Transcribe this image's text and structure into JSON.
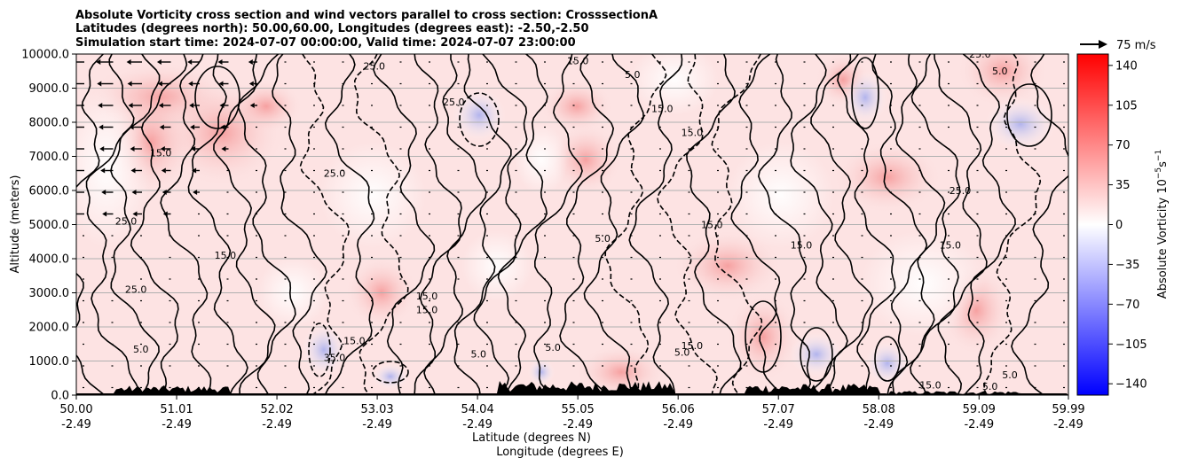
{
  "chart_data": {
    "type": "heatmap",
    "title_lines": [
      "Absolute Vorticity cross section and wind vectors parallel to cross section: CrosssectionA",
      "Latitudes (degrees north): 50.00,60.00, Longitudes (degrees east): -2.50,-2.50",
      "Simulation start time: 2024-07-07 00:00:00, Valid time: 2024-07-07 23:00:00"
    ],
    "xlabel": "Latitude (degrees N)",
    "xlabel2": "Longitude (degrees E)",
    "ylabel": "Altitude (meters)",
    "xlim": [
      50.0,
      59.99
    ],
    "ylim": [
      0,
      10000
    ],
    "x_ticks": [
      {
        "lat": "50.00",
        "lon": "-2.49",
        "value": 50.0
      },
      {
        "lat": "51.01",
        "lon": "-2.49",
        "value": 51.01
      },
      {
        "lat": "52.02",
        "lon": "-2.49",
        "value": 52.02
      },
      {
        "lat": "53.03",
        "lon": "-2.49",
        "value": 53.03
      },
      {
        "lat": "54.04",
        "lon": "-2.49",
        "value": 54.04
      },
      {
        "lat": "55.05",
        "lon": "-2.49",
        "value": 55.05
      },
      {
        "lat": "56.06",
        "lon": "-2.49",
        "value": 56.06
      },
      {
        "lat": "57.07",
        "lon": "-2.49",
        "value": 57.07
      },
      {
        "lat": "58.08",
        "lon": "-2.49",
        "value": 58.08
      },
      {
        "lat": "59.09",
        "lon": "-2.49",
        "value": 59.09
      },
      {
        "lat": "59.99",
        "lon": "-2.49",
        "value": 59.99
      }
    ],
    "y_ticks": [
      {
        "label": "0.0",
        "value": 0
      },
      {
        "label": "1000.0",
        "value": 1000
      },
      {
        "label": "2000.0",
        "value": 2000
      },
      {
        "label": "3000.0",
        "value": 3000
      },
      {
        "label": "4000.0",
        "value": 4000
      },
      {
        "label": "5000.0",
        "value": 5000
      },
      {
        "label": "6000.0",
        "value": 6000
      },
      {
        "label": "7000.0",
        "value": 7000
      },
      {
        "label": "8000.0",
        "value": 8000
      },
      {
        "label": "9000.0",
        "value": 9000
      },
      {
        "label": "10000.0",
        "value": 10000
      }
    ],
    "grid": "horizontal",
    "colorbar": {
      "label": "Absolute Vorticity 10",
      "label_exponent": "−5",
      "label_unit": "s",
      "label_unit_exponent": "−1",
      "range": [
        -150,
        150
      ],
      "ticks": [
        {
          "label": "140",
          "value": 140
        },
        {
          "label": "105",
          "value": 105
        },
        {
          "label": "70",
          "value": 70
        },
        {
          "label": "35",
          "value": 35
        },
        {
          "label": "0",
          "value": 0
        },
        {
          "label": "−35",
          "value": -35
        },
        {
          "label": "−70",
          "value": -70
        },
        {
          "label": "−105",
          "value": -105
        },
        {
          "label": "−140",
          "value": -140
        }
      ],
      "colormap": "bwr",
      "low_color": "#0000ff",
      "mid_color": "#ffffff",
      "high_color": "#ff0000"
    },
    "quiver_key": {
      "label": "75 m/s",
      "value": 75
    },
    "contour_labels": [
      {
        "text": "25.0",
        "lat": 53.0,
        "alt": 9550
      },
      {
        "text": "25.0",
        "lat": 52.6,
        "alt": 6400
      },
      {
        "text": "15.0",
        "lat": 50.85,
        "alt": 7000
      },
      {
        "text": "25.0",
        "lat": 50.5,
        "alt": 5000
      },
      {
        "text": "15.0",
        "lat": 55.05,
        "alt": 9700
      },
      {
        "text": "15.0",
        "lat": 55.9,
        "alt": 8300
      },
      {
        "text": "5.0",
        "lat": 55.6,
        "alt": 9300
      },
      {
        "text": "5.0",
        "lat": 55.3,
        "alt": 4500
      },
      {
        "text": "15.0",
        "lat": 57.3,
        "alt": 4300
      },
      {
        "text": "15.0",
        "lat": 58.8,
        "alt": 4300
      },
      {
        "text": "25.0",
        "lat": 58.9,
        "alt": 5900
      },
      {
        "text": "25.0",
        "lat": 59.1,
        "alt": 9900
      },
      {
        "text": "5.0",
        "lat": 59.3,
        "alt": 9400
      },
      {
        "text": "15.0",
        "lat": 53.53,
        "alt": 2800
      },
      {
        "text": "15.0",
        "lat": 53.53,
        "alt": 2400
      },
      {
        "text": "15.0",
        "lat": 52.8,
        "alt": 1500
      },
      {
        "text": "35.0",
        "lat": 52.6,
        "alt": 1000
      },
      {
        "text": "5.0",
        "lat": 50.65,
        "alt": 1250
      },
      {
        "text": "5.0",
        "lat": 54.05,
        "alt": 1100
      },
      {
        "text": "5.0",
        "lat": 54.8,
        "alt": 1300
      },
      {
        "text": "15.0",
        "lat": 56.2,
        "alt": 1350
      },
      {
        "text": "5.0",
        "lat": 56.1,
        "alt": 1150
      },
      {
        "text": "15.0",
        "lat": 56.4,
        "alt": 4900
      },
      {
        "text": "15.0",
        "lat": 56.2,
        "alt": 7600
      },
      {
        "text": "5.0",
        "lat": 59.4,
        "alt": 500
      },
      {
        "text": "15.0",
        "lat": 58.6,
        "alt": 200
      },
      {
        "text": "5.0",
        "lat": 59.2,
        "alt": 150
      },
      {
        "text": "25.0",
        "lat": 53.8,
        "alt": 8500
      },
      {
        "text": "25.0",
        "lat": 50.6,
        "alt": 3000
      },
      {
        "text": "15.0",
        "lat": 51.5,
        "alt": 4000
      }
    ]
  }
}
